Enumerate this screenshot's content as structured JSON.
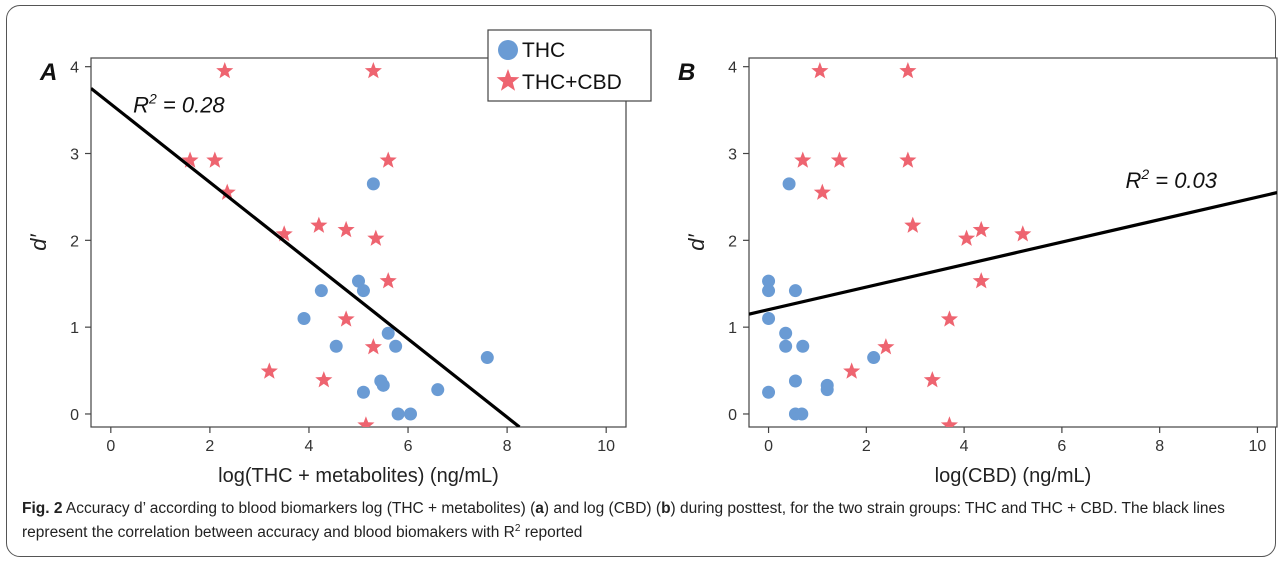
{
  "chart_data": [
    {
      "panel": "A",
      "type": "scatter",
      "xlabel": "log(THC + metabolites) (ng/mL)",
      "ylabel": "d′",
      "xlim": [
        -0.4,
        10.4
      ],
      "ylim": [
        -0.15,
        4.1
      ],
      "xticks": [
        0,
        2,
        4,
        6,
        8,
        10
      ],
      "yticks": [
        0,
        1,
        2,
        3,
        4
      ],
      "grid": false,
      "series": [
        {
          "name": "THC",
          "marker": "circle",
          "color": "#6a9bd4",
          "points": [
            [
              5.3,
              2.65
            ],
            [
              4.25,
              1.42
            ],
            [
              3.9,
              1.1
            ],
            [
              5.0,
              1.53
            ],
            [
              5.1,
              1.42
            ],
            [
              5.6,
              0.93
            ],
            [
              4.55,
              0.78
            ],
            [
              5.75,
              0.78
            ],
            [
              5.45,
              0.38
            ],
            [
              5.5,
              0.33
            ],
            [
              5.1,
              0.25
            ],
            [
              6.6,
              0.28
            ],
            [
              5.8,
              0.0
            ],
            [
              6.05,
              0.0
            ],
            [
              7.6,
              0.65
            ]
          ]
        },
        {
          "name": "THC+CBD",
          "marker": "star",
          "color": "#ee6470",
          "points": [
            [
              2.3,
              3.95
            ],
            [
              5.3,
              3.95
            ],
            [
              1.6,
              2.92
            ],
            [
              2.1,
              2.92
            ],
            [
              5.6,
              2.92
            ],
            [
              2.35,
              2.55
            ],
            [
              3.5,
              2.07
            ],
            [
              4.2,
              2.17
            ],
            [
              4.75,
              2.12
            ],
            [
              5.35,
              2.02
            ],
            [
              5.6,
              1.53
            ],
            [
              4.75,
              1.09
            ],
            [
              5.3,
              0.77
            ],
            [
              3.2,
              0.49
            ],
            [
              4.3,
              0.39
            ],
            [
              5.15,
              -0.13
            ]
          ]
        }
      ],
      "fit_line": {
        "x": [
          -0.4,
          8.25
        ],
        "y": [
          3.75,
          -0.15
        ]
      },
      "annotation": {
        "prefix": "R",
        "sup": "2",
        "suffix": " = 0.28",
        "x": 0.45,
        "y": 3.47
      }
    },
    {
      "panel": "B",
      "type": "scatter",
      "xlabel": "log(CBD) (ng/mL)",
      "ylabel": "d′",
      "xlim": [
        -0.4,
        10.4
      ],
      "ylim": [
        -0.15,
        4.1
      ],
      "xticks": [
        0,
        2,
        4,
        6,
        8,
        10
      ],
      "yticks": [
        0,
        1,
        2,
        3,
        4
      ],
      "grid": false,
      "series": [
        {
          "name": "THC",
          "marker": "circle",
          "color": "#6a9bd4",
          "points": [
            [
              0.42,
              2.65
            ],
            [
              0.0,
              1.53
            ],
            [
              0.0,
              1.42
            ],
            [
              0.55,
              1.42
            ],
            [
              0.0,
              1.1
            ],
            [
              0.35,
              0.93
            ],
            [
              0.35,
              0.78
            ],
            [
              0.7,
              0.78
            ],
            [
              0.55,
              0.38
            ],
            [
              1.2,
              0.33
            ],
            [
              1.2,
              0.28
            ],
            [
              0.0,
              0.25
            ],
            [
              0.55,
              0.0
            ],
            [
              0.68,
              0.0
            ],
            [
              2.15,
              0.65
            ]
          ]
        },
        {
          "name": "THC+CBD",
          "marker": "star",
          "color": "#ee6470",
          "points": [
            [
              1.05,
              3.95
            ],
            [
              2.85,
              3.95
            ],
            [
              0.7,
              2.92
            ],
            [
              1.45,
              2.92
            ],
            [
              2.85,
              2.92
            ],
            [
              1.1,
              2.55
            ],
            [
              2.95,
              2.17
            ],
            [
              4.05,
              2.02
            ],
            [
              4.35,
              2.12
            ],
            [
              5.2,
              2.07
            ],
            [
              4.35,
              1.53
            ],
            [
              3.7,
              1.09
            ],
            [
              2.4,
              0.77
            ],
            [
              1.7,
              0.49
            ],
            [
              3.35,
              0.39
            ],
            [
              3.7,
              -0.13
            ]
          ]
        }
      ],
      "fit_line": {
        "x": [
          -0.4,
          10.4
        ],
        "y": [
          1.15,
          2.55
        ]
      },
      "annotation": {
        "prefix": "R",
        "sup": "2",
        "suffix": " = 0.03",
        "x": 7.3,
        "y": 2.6
      }
    }
  ],
  "legend": {
    "items": [
      "THC",
      "THC+CBD"
    ]
  },
  "caption": {
    "fig_label": "Fig. 2",
    "part1": " Accuracy d’ according to blood biomarkers log (THC + metabolites) (",
    "a": "a",
    "part2": ") and log (CBD) (",
    "b": "b",
    "part3": ") during posttest, for the two strain groups: THC and THC + CBD. The black lines represent the correlation between accuracy and blood biomakers with R",
    "sup": "2",
    "part4": " reported"
  }
}
